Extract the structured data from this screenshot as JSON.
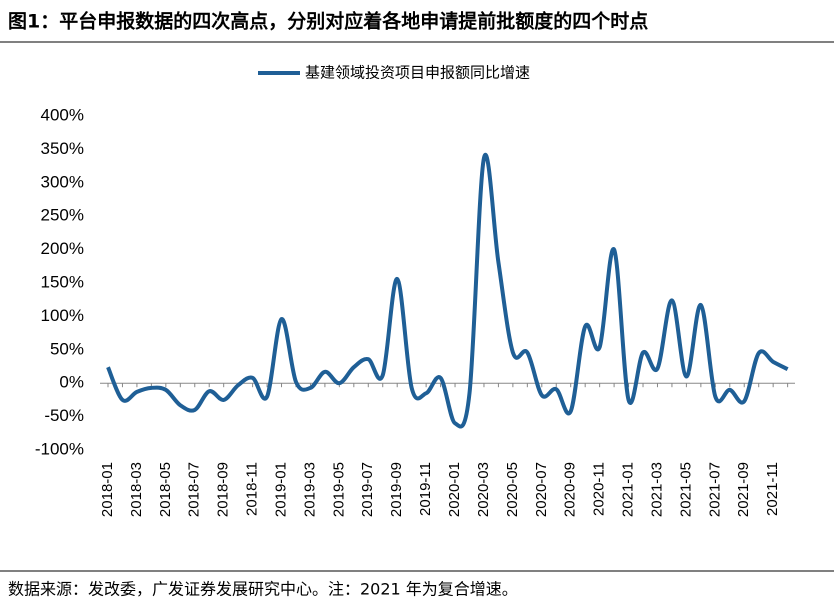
{
  "chart_data": {
    "type": "line",
    "title": "图1：平台申报数据的四次高点，分别对应着各地申请提前批额度的四个时点",
    "source": "数据来源：发改委，广发证券发展研究中心。注：2021 年为复合增速。",
    "categories": [
      "2018-01",
      null,
      "2018-03",
      null,
      "2018-05",
      null,
      "2018-07",
      null,
      "2018-09",
      null,
      "2018-11",
      null,
      "2019-01",
      null,
      "2019-03",
      null,
      "2019-05",
      null,
      "2019-07",
      null,
      "2019-09",
      null,
      "2019-11",
      null,
      "2020-01",
      null,
      "2020-03",
      null,
      "2020-05",
      null,
      "2020-07",
      null,
      "2020-09",
      null,
      "2020-11",
      null,
      "2021-01",
      null,
      "2021-03",
      null,
      "2021-05",
      null,
      "2021-07",
      null,
      "2021-09",
      null,
      "2021-11",
      null
    ],
    "series": [
      {
        "name": "基建领域投资项目申报额同比增速",
        "color": "#1f5f96",
        "values": [
          24,
          -25,
          -13,
          -7,
          -10,
          -33,
          -40,
          -12,
          -25,
          -3,
          8,
          -20,
          96,
          2,
          -7,
          17,
          0,
          24,
          36,
          12,
          156,
          -7,
          -15,
          8,
          -60,
          -15,
          337,
          181,
          46,
          46,
          -18,
          -9,
          -42,
          85,
          54,
          200,
          -25,
          46,
          22,
          124,
          10,
          117,
          -20,
          -10,
          -27,
          45,
          32,
          21
        ]
      }
    ],
    "ylim": [
      -100,
      400
    ],
    "yticks": [
      {
        "value": -100,
        "label": "-100%"
      },
      {
        "value": -50,
        "label": "-50%"
      },
      {
        "value": 0,
        "label": "0%"
      },
      {
        "value": 50,
        "label": "50%"
      },
      {
        "value": 100,
        "label": "100%"
      },
      {
        "value": 150,
        "label": "150%"
      },
      {
        "value": 200,
        "label": "200%"
      },
      {
        "value": 250,
        "label": "250%"
      },
      {
        "value": 300,
        "label": "300%"
      },
      {
        "value": 350,
        "label": "350%"
      },
      {
        "value": 400,
        "label": "400%"
      }
    ],
    "legend": "top"
  }
}
